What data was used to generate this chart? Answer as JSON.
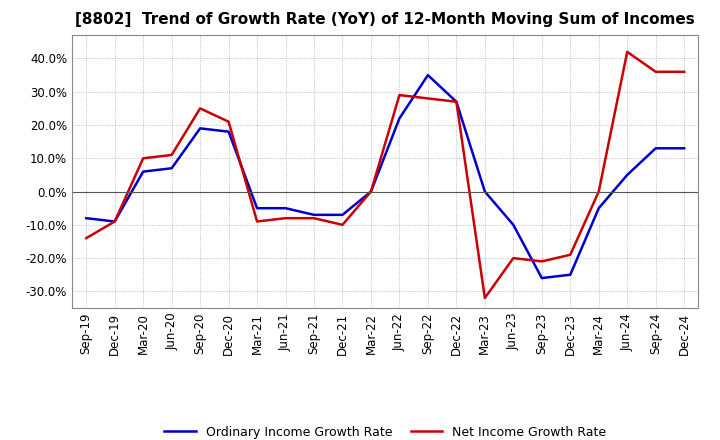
{
  "title": "[8802]  Trend of Growth Rate (YoY) of 12-Month Moving Sum of Incomes",
  "x_labels": [
    "Sep-19",
    "Dec-19",
    "Mar-20",
    "Jun-20",
    "Sep-20",
    "Dec-20",
    "Mar-21",
    "Jun-21",
    "Sep-21",
    "Dec-21",
    "Mar-22",
    "Jun-22",
    "Sep-22",
    "Dec-22",
    "Mar-23",
    "Jun-23",
    "Sep-23",
    "Dec-23",
    "Mar-24",
    "Jun-24",
    "Sep-24",
    "Dec-24"
  ],
  "ordinary_income": [
    -0.08,
    -0.09,
    0.06,
    0.07,
    0.19,
    0.18,
    -0.05,
    -0.05,
    -0.07,
    -0.07,
    0.0,
    0.22,
    0.35,
    0.27,
    0.0,
    -0.1,
    -0.26,
    -0.25,
    -0.05,
    0.05,
    0.13,
    0.13
  ],
  "net_income": [
    -0.14,
    -0.09,
    0.1,
    0.11,
    0.25,
    0.21,
    -0.09,
    -0.08,
    -0.08,
    -0.1,
    0.0,
    0.29,
    0.28,
    0.27,
    -0.32,
    -0.2,
    -0.21,
    -0.19,
    0.0,
    0.42,
    0.36,
    0.36
  ],
  "ordinary_color": "#0000cc",
  "net_color": "#cc0000",
  "ylim": [
    -0.35,
    0.47
  ],
  "yticks": [
    -0.3,
    -0.2,
    -0.1,
    0.0,
    0.1,
    0.2,
    0.3,
    0.4
  ],
  "background_color": "#ffffff",
  "plot_bg_color": "#ffffff",
  "grid_color": "#aaaacc",
  "legend_ordinary": "Ordinary Income Growth Rate",
  "legend_net": "Net Income Growth Rate",
  "title_fontsize": 11,
  "tick_fontsize": 8.5,
  "legend_fontsize": 9
}
